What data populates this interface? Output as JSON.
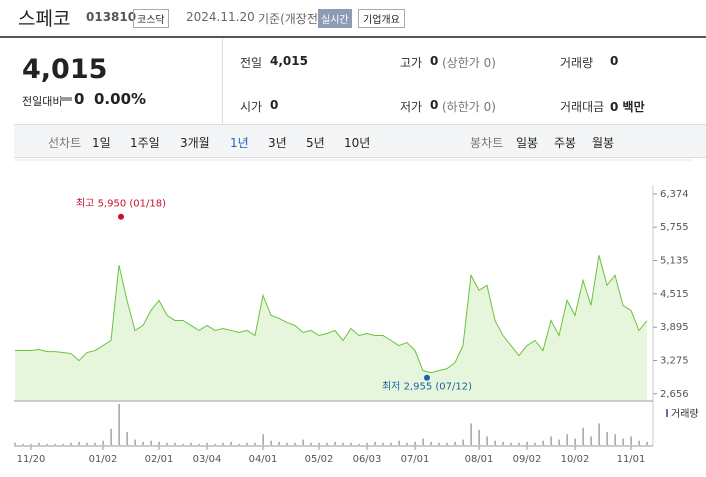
{
  "header": {
    "title": "스페코",
    "code": "013810",
    "market": "코스닥",
    "date": "2024.11.20",
    "basis": "기준(개장전)",
    "realtime": "실시간",
    "overview": "기업개요"
  },
  "quote": {
    "price": "4,015",
    "change_label": "전일대비",
    "change": "0",
    "rate": "0.00%",
    "cells": [
      [
        "전일",
        "4,015"
      ],
      [
        "고가",
        "0",
        "(상한가 0)"
      ],
      [
        "거래량",
        "0"
      ],
      [
        "시가",
        "0"
      ],
      [
        "저가",
        "0",
        "(하한가 0)"
      ],
      [
        "거래대금",
        "0 백만"
      ]
    ]
  },
  "tabs": {
    "line_label": "선차트",
    "line": [
      "1일",
      "1주일",
      "3개월",
      "1년",
      "3년",
      "5년",
      "10년"
    ],
    "active": "1년",
    "candle_label": "봉차트",
    "candle": [
      "일봉",
      "주봉",
      "월봉"
    ]
  },
  "chart_data": {
    "type": "line",
    "categories": [
      null,
      null,
      "11/20",
      null,
      null,
      null,
      null,
      null,
      null,
      null,
      null,
      "01/02",
      null,
      null,
      null,
      null,
      null,
      null,
      "02/01",
      null,
      null,
      null,
      null,
      null,
      "03/04",
      null,
      null,
      null,
      null,
      null,
      null,
      "04/01",
      null,
      null,
      null,
      null,
      null,
      null,
      "05/02",
      null,
      null,
      null,
      null,
      null,
      "06/03",
      null,
      null,
      null,
      null,
      null,
      "07/01",
      null,
      null,
      null,
      null,
      null,
      null,
      null,
      "08/01",
      null,
      null,
      null,
      null,
      null,
      "09/02",
      null,
      null,
      null,
      null,
      null,
      "10/02",
      null,
      null,
      null,
      null,
      null,
      null,
      "11/01",
      null,
      null
    ],
    "series": [
      {
        "color": "#6cc13c",
        "values": [
          3460,
          3460,
          3460,
          3479,
          3441,
          3441,
          3423,
          3404,
          3273,
          3423,
          3460,
          3553,
          3647,
          5048,
          4394,
          3834,
          3927,
          4207,
          4394,
          4114,
          4020,
          4020,
          3927,
          3834,
          3927,
          3834,
          3871,
          3834,
          3796,
          3834,
          3740,
          4487,
          4114,
          4058,
          3983,
          3927,
          3796,
          3834,
          3740,
          3777,
          3834,
          3647,
          3871,
          3740,
          3777,
          3740,
          3740,
          3647,
          3553,
          3609,
          3460,
          3086,
          3049,
          3086,
          3124,
          3236,
          3553,
          4861,
          4581,
          4674,
          4020,
          3740,
          3553,
          3367,
          3553,
          3647,
          3460,
          4020,
          3740,
          4394,
          4114,
          4768,
          4301,
          5234,
          4674,
          4861,
          4301,
          4207,
          3834,
          4015
        ]
      }
    ],
    "volume": {
      "name": "거래량",
      "color": "#8a8a8a",
      "values": [
        2,
        1,
        1,
        2,
        1,
        1,
        1,
        2,
        3,
        2,
        2,
        4,
        15,
        38,
        12,
        5,
        3,
        4,
        3,
        2,
        2,
        1,
        2,
        1,
        2,
        1,
        2,
        3,
        1,
        2,
        2,
        10,
        4,
        3,
        2,
        2,
        5,
        2,
        2,
        2,
        3,
        2,
        2,
        1,
        2,
        3,
        2,
        2,
        4,
        2,
        3,
        6,
        3,
        2,
        2,
        3,
        5,
        20,
        14,
        8,
        4,
        3,
        2,
        2,
        3,
        2,
        4,
        8,
        5,
        10,
        6,
        16,
        8,
        20,
        12,
        10,
        6,
        8,
        4,
        3
      ]
    },
    "annotations": [
      {
        "label": "최고 5,950 (01/18)",
        "value": 5950,
        "color": "#c8102e"
      },
      {
        "label": "최저 2,955 (07/12)",
        "value": 2955,
        "color": "#1f5fa8"
      }
    ],
    "ylim": [
      2540,
      6540
    ],
    "yticks": [
      {
        "value": 6374,
        "label": "6,374"
      },
      {
        "value": 5755,
        "label": "5,755"
      },
      {
        "value": 5135,
        "label": "5,135"
      },
      {
        "value": 4515,
        "label": "4,515"
      },
      {
        "value": 3895,
        "label": "3,895"
      },
      {
        "value": 3275,
        "label": "3,275"
      },
      {
        "value": 2656,
        "label": "2,656"
      }
    ]
  }
}
